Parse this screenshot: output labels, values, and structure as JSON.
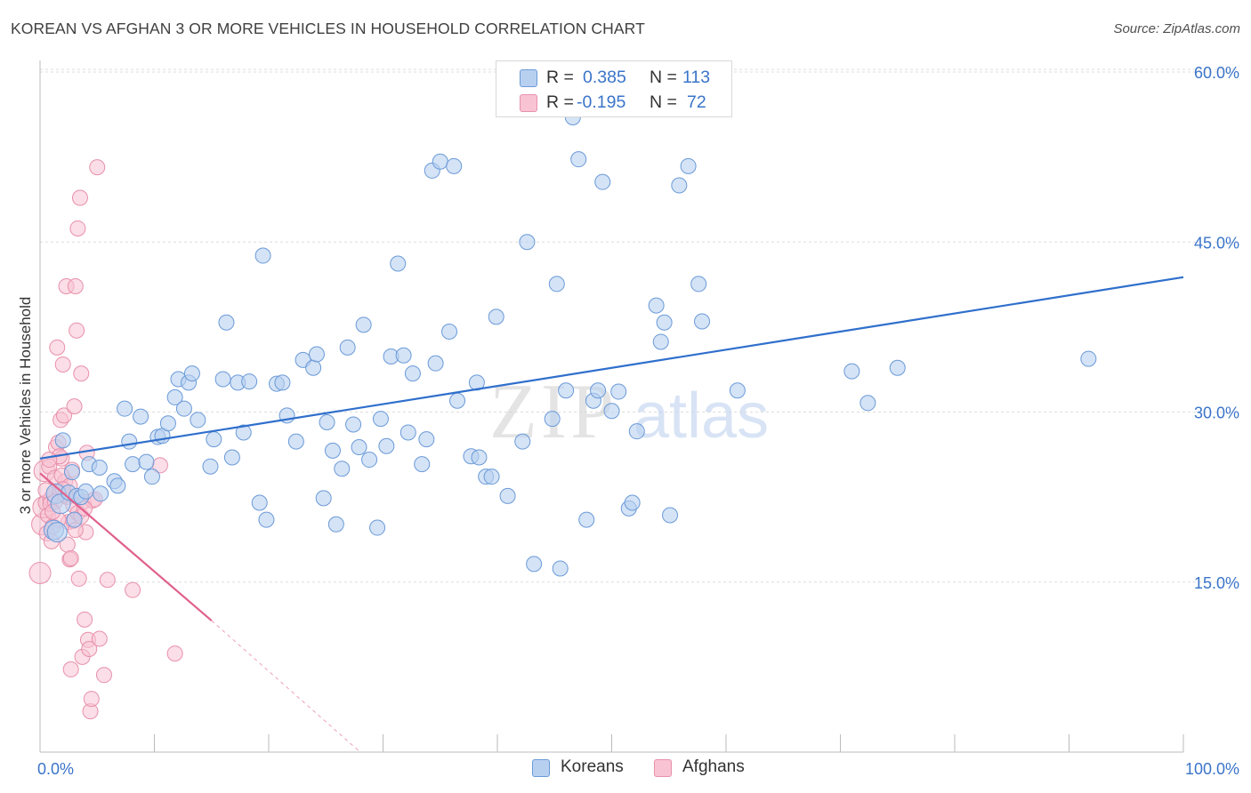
{
  "title": "KOREAN VS AFGHAN 3 OR MORE VEHICLES IN HOUSEHOLD CORRELATION CHART",
  "source": "Source: ZipAtlas.com",
  "watermark": {
    "zip": "ZIP",
    "atlas": "atlas"
  },
  "legend": {
    "rows": [
      {
        "r_label": "R = ",
        "r_value": "0.385",
        "n_label": "N = ",
        "n_value": "113"
      },
      {
        "r_label": "R = ",
        "r_value": "-0.195",
        "n_label": "N = ",
        "n_value": "72"
      }
    ]
  },
  "bottom_legend": [
    {
      "label": "Koreans"
    },
    {
      "label": "Afghans"
    }
  ],
  "colors": {
    "korean_fill": "#b8d0f0",
    "korean_stroke": "#6b9ad8",
    "korean_line": "#2f6fcc",
    "afghan_fill": "#f8c3d3",
    "afghan_stroke": "#e890ab",
    "afghan_line": "#e0608c",
    "tick_label": "#3a74c9",
    "grid": "#dddddd"
  },
  "chart_data": {
    "type": "scatter",
    "title": "KOREAN VS AFGHAN 3 OR MORE VEHICLES IN HOUSEHOLD CORRELATION CHART",
    "xlabel": "",
    "ylabel": "3 or more Vehicles in Household",
    "xlim": [
      0,
      100
    ],
    "ylim": [
      0,
      60
    ],
    "x_tick_labels": [
      {
        "value": 0,
        "label": "0.0%"
      },
      {
        "value": 100,
        "label": "100.0%"
      }
    ],
    "y_tick_labels": [
      {
        "value": 15,
        "label": "15.0%"
      },
      {
        "value": 30,
        "label": "30.0%"
      },
      {
        "value": 45,
        "label": "45.0%"
      },
      {
        "value": 60,
        "label": "60.0%"
      }
    ],
    "grid": true,
    "legend_position": "top-center",
    "series": [
      {
        "name": "Koreans",
        "r": 0.385,
        "n": 113,
        "trend": {
          "x": [
            0,
            100
          ],
          "y": [
            25.9,
            41.9
          ],
          "dashed_beyond": null
        },
        "points": [
          [
            1.2,
            19.6
          ],
          [
            1.4,
            22.8
          ],
          [
            1.5,
            19.4
          ],
          [
            1.8,
            21.9
          ],
          [
            2.5,
            22.9
          ],
          [
            2.8,
            24.7
          ],
          [
            3.2,
            22.6
          ],
          [
            3.6,
            22.5
          ],
          [
            4.0,
            23.0
          ],
          [
            4.3,
            25.4
          ],
          [
            5.2,
            25.1
          ],
          [
            5.3,
            22.8
          ],
          [
            6.5,
            23.9
          ],
          [
            6.8,
            23.5
          ],
          [
            7.4,
            30.3
          ],
          [
            7.8,
            27.4
          ],
          [
            8.1,
            25.4
          ],
          [
            8.8,
            29.6
          ],
          [
            9.3,
            25.6
          ],
          [
            9.8,
            24.3
          ],
          [
            10.3,
            27.8
          ],
          [
            10.7,
            27.9
          ],
          [
            11.2,
            29.0
          ],
          [
            11.8,
            31.3
          ],
          [
            12.1,
            32.9
          ],
          [
            12.6,
            30.3
          ],
          [
            13.0,
            32.6
          ],
          [
            13.3,
            33.4
          ],
          [
            13.8,
            29.3
          ],
          [
            14.9,
            25.2
          ],
          [
            15.2,
            27.6
          ],
          [
            16.0,
            32.9
          ],
          [
            16.3,
            37.9
          ],
          [
            16.8,
            26.0
          ],
          [
            17.3,
            32.6
          ],
          [
            17.8,
            28.2
          ],
          [
            18.3,
            32.7
          ],
          [
            19.2,
            22.0
          ],
          [
            19.5,
            43.8
          ],
          [
            19.8,
            20.5
          ],
          [
            20.7,
            32.5
          ],
          [
            21.2,
            32.6
          ],
          [
            21.6,
            29.7
          ],
          [
            22.4,
            27.4
          ],
          [
            23.0,
            34.6
          ],
          [
            23.9,
            33.9
          ],
          [
            24.2,
            35.1
          ],
          [
            24.8,
            22.4
          ],
          [
            25.1,
            29.1
          ],
          [
            25.6,
            26.6
          ],
          [
            25.9,
            20.1
          ],
          [
            26.4,
            25.0
          ],
          [
            26.9,
            35.7
          ],
          [
            27.4,
            28.9
          ],
          [
            27.9,
            26.9
          ],
          [
            28.3,
            37.7
          ],
          [
            28.8,
            25.8
          ],
          [
            29.5,
            19.8
          ],
          [
            29.8,
            29.4
          ],
          [
            30.3,
            27.0
          ],
          [
            30.7,
            34.9
          ],
          [
            31.3,
            43.1
          ],
          [
            31.8,
            35.0
          ],
          [
            32.2,
            28.2
          ],
          [
            32.6,
            33.4
          ],
          [
            33.4,
            25.4
          ],
          [
            33.8,
            27.6
          ],
          [
            34.3,
            51.3
          ],
          [
            34.6,
            34.3
          ],
          [
            35.0,
            52.1
          ],
          [
            35.8,
            37.1
          ],
          [
            36.2,
            51.7
          ],
          [
            36.5,
            31.0
          ],
          [
            37.7,
            26.1
          ],
          [
            38.2,
            32.6
          ],
          [
            38.4,
            26.0
          ],
          [
            39.0,
            24.3
          ],
          [
            39.5,
            24.3
          ],
          [
            39.9,
            38.4
          ],
          [
            40.9,
            22.6
          ],
          [
            42.2,
            27.4
          ],
          [
            42.6,
            45.0
          ],
          [
            43.2,
            16.6
          ],
          [
            44.8,
            29.4
          ],
          [
            45.2,
            41.3
          ],
          [
            45.5,
            16.2
          ],
          [
            46.0,
            31.9
          ],
          [
            46.6,
            56.0
          ],
          [
            47.1,
            52.3
          ],
          [
            47.8,
            20.5
          ],
          [
            48.4,
            31.0
          ],
          [
            48.8,
            31.9
          ],
          [
            49.2,
            50.3
          ],
          [
            50.0,
            30.1
          ],
          [
            50.6,
            31.8
          ],
          [
            51.5,
            21.5
          ],
          [
            51.8,
            22.0
          ],
          [
            52.2,
            28.3
          ],
          [
            53.9,
            39.4
          ],
          [
            54.3,
            36.2
          ],
          [
            54.6,
            37.9
          ],
          [
            55.1,
            20.9
          ],
          [
            55.9,
            50.0
          ],
          [
            56.7,
            51.7
          ],
          [
            57.6,
            41.3
          ],
          [
            57.9,
            38.0
          ],
          [
            61.0,
            31.9
          ],
          [
            71.0,
            33.6
          ],
          [
            72.4,
            30.8
          ],
          [
            75.0,
            33.9
          ],
          [
            91.7,
            34.7
          ],
          [
            2.0,
            27.5
          ],
          [
            3.0,
            20.5
          ]
        ]
      },
      {
        "name": "Afghans",
        "r": -0.195,
        "n": 72,
        "trend": {
          "x": [
            0,
            15
          ],
          "y": [
            24.6,
            11.6
          ],
          "dashed_to": [
            28,
            0
          ]
        },
        "points": [
          [
            0.0,
            15.8
          ],
          [
            0.2,
            20.1
          ],
          [
            0.3,
            21.6
          ],
          [
            0.4,
            24.8
          ],
          [
            0.5,
            22.0
          ],
          [
            0.6,
            19.3
          ],
          [
            0.7,
            20.9
          ],
          [
            0.8,
            25.2
          ],
          [
            0.9,
            22.3
          ],
          [
            1.0,
            18.6
          ],
          [
            1.1,
            19.9
          ],
          [
            1.2,
            22.7
          ],
          [
            1.3,
            24.2
          ],
          [
            1.4,
            26.9
          ],
          [
            1.5,
            35.7
          ],
          [
            1.6,
            27.3
          ],
          [
            1.7,
            22.9
          ],
          [
            1.8,
            29.3
          ],
          [
            1.9,
            25.9
          ],
          [
            2.0,
            34.2
          ],
          [
            2.1,
            29.7
          ],
          [
            2.2,
            23.9
          ],
          [
            2.3,
            41.1
          ],
          [
            2.4,
            22.5
          ],
          [
            2.5,
            20.3
          ],
          [
            2.6,
            17.0
          ],
          [
            2.7,
            7.3
          ],
          [
            2.8,
            24.9
          ],
          [
            2.9,
            20.4
          ],
          [
            3.0,
            30.5
          ],
          [
            3.1,
            41.1
          ],
          [
            3.2,
            37.2
          ],
          [
            3.3,
            46.2
          ],
          [
            3.4,
            15.3
          ],
          [
            3.5,
            48.9
          ],
          [
            3.6,
            33.4
          ],
          [
            3.7,
            8.4
          ],
          [
            3.8,
            22.1
          ],
          [
            3.9,
            11.7
          ],
          [
            4.0,
            19.4
          ],
          [
            4.1,
            26.4
          ],
          [
            4.2,
            9.9
          ],
          [
            4.4,
            3.6
          ],
          [
            4.5,
            4.7
          ],
          [
            4.6,
            22.2
          ],
          [
            4.8,
            22.3
          ],
          [
            5.0,
            51.6
          ],
          [
            5.2,
            10.0
          ],
          [
            5.6,
            6.8
          ],
          [
            5.9,
            15.2
          ],
          [
            8.1,
            14.3
          ],
          [
            10.5,
            25.3
          ],
          [
            11.8,
            8.7
          ],
          [
            0.5,
            23.1
          ],
          [
            0.9,
            21.9
          ],
          [
            1.3,
            22.1
          ],
          [
            1.6,
            20.5
          ],
          [
            1.9,
            24.4
          ],
          [
            2.2,
            22.7
          ],
          [
            2.6,
            23.5
          ],
          [
            2.9,
            21.8
          ],
          [
            3.3,
            21.1
          ],
          [
            3.6,
            20.8
          ],
          [
            3.9,
            21.5
          ],
          [
            2.4,
            18.3
          ],
          [
            1.7,
            26.1
          ],
          [
            2.0,
            23.2
          ],
          [
            4.3,
            9.1
          ],
          [
            3.1,
            19.6
          ],
          [
            0.8,
            25.8
          ],
          [
            1.1,
            21.2
          ],
          [
            2.7,
            17.1
          ]
        ]
      }
    ]
  }
}
